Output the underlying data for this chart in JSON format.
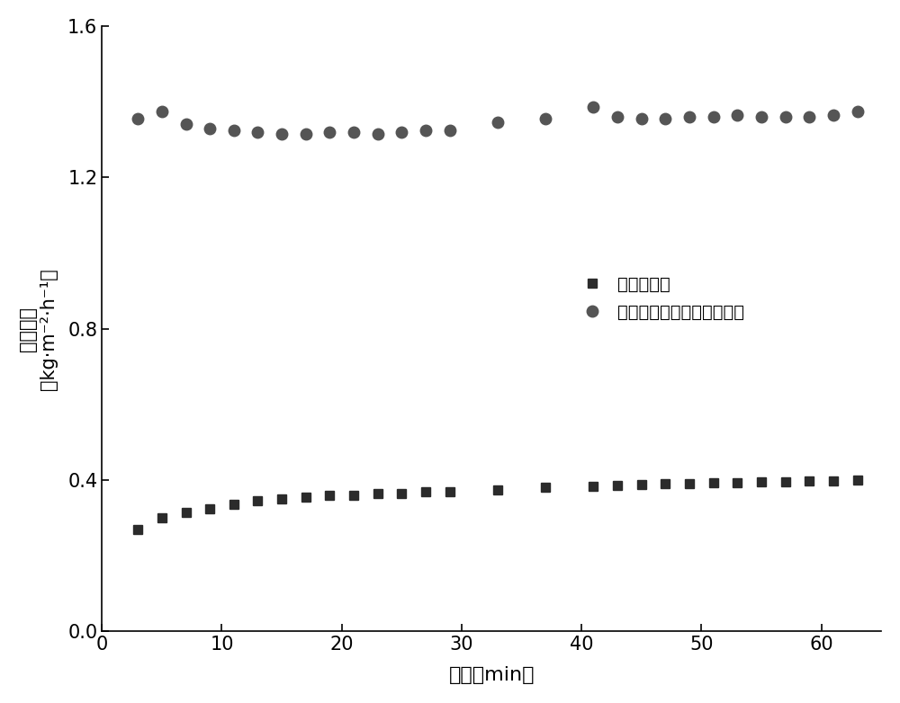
{
  "series1_label": "自然条件下",
  "series2_label": "纤维素源碳基光热转换材料",
  "series1_x": [
    3,
    5,
    7,
    9,
    11,
    13,
    15,
    17,
    19,
    21,
    23,
    25,
    27,
    29,
    33,
    37,
    41,
    43,
    45,
    47,
    49,
    51,
    53,
    55,
    57,
    59,
    61,
    63
  ],
  "series1_y": [
    0.27,
    0.3,
    0.315,
    0.325,
    0.335,
    0.345,
    0.35,
    0.355,
    0.36,
    0.36,
    0.365,
    0.365,
    0.37,
    0.37,
    0.375,
    0.38,
    0.383,
    0.385,
    0.387,
    0.39,
    0.39,
    0.392,
    0.393,
    0.395,
    0.396,
    0.397,
    0.398,
    0.4
  ],
  "series2_x": [
    3,
    5,
    7,
    9,
    11,
    13,
    15,
    17,
    19,
    21,
    23,
    25,
    27,
    29,
    33,
    37,
    41,
    43,
    45,
    47,
    49,
    51,
    53,
    55,
    57,
    59,
    61,
    63
  ],
  "series2_y": [
    1.355,
    1.375,
    1.34,
    1.33,
    1.325,
    1.32,
    1.315,
    1.315,
    1.32,
    1.32,
    1.315,
    1.32,
    1.325,
    1.325,
    1.345,
    1.355,
    1.385,
    1.36,
    1.355,
    1.355,
    1.36,
    1.36,
    1.365,
    1.36,
    1.36,
    1.36,
    1.365,
    1.375
  ],
  "xlabel": "时间（min）",
  "ylabel_line1": "蒸发速率",
  "ylabel_line2": "（kg·m⁻²·h⁻¹）",
  "xlim": [
    0,
    65
  ],
  "ylim": [
    0.0,
    1.6
  ],
  "xticks": [
    0,
    10,
    20,
    30,
    40,
    50,
    60
  ],
  "yticks": [
    0.0,
    0.4,
    0.8,
    1.2,
    1.6
  ],
  "marker1": "s",
  "marker2": "o",
  "color1": "#2b2b2b",
  "color2": "#555555",
  "markersize1": 7,
  "markersize2": 9,
  "figure_width": 10.0,
  "figure_height": 7.82,
  "dpi": 100
}
